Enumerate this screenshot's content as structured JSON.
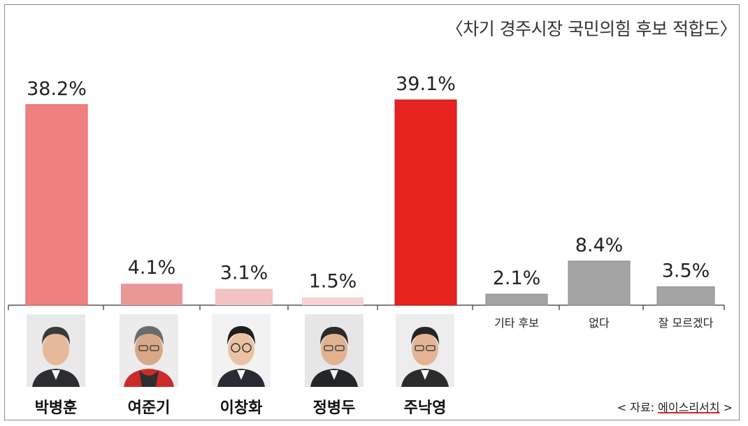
{
  "title": "〈차기 경주시장 국민의힘 후보 적합도〉",
  "source": {
    "prefix": "< 자료:",
    "name": "에이스리서치",
    "suffix": ">"
  },
  "chart_data": {
    "type": "bar",
    "title": "〈차기 경주시장 국민의힘 후보 적합도〉",
    "categories": [
      "박병훈",
      "여준기",
      "이창화",
      "정병두",
      "주낙영",
      "기타 후보",
      "없다",
      "잘 모르겠다"
    ],
    "values": [
      38.2,
      4.1,
      3.1,
      1.5,
      39.1,
      2.1,
      8.4,
      3.5
    ],
    "value_labels": [
      "38.2%",
      "4.1%",
      "3.1%",
      "1.5%",
      "39.1%",
      "2.1%",
      "8.4%",
      "3.5%"
    ],
    "colors": [
      "#f08080",
      "#e99898",
      "#f3c2c2",
      "#f6d2d2",
      "#e6231f",
      "#a4a4a4",
      "#a4a4a4",
      "#a4a4a4"
    ],
    "ylim": [
      0,
      40
    ],
    "grid": false,
    "legend": "none",
    "xlabel": "",
    "ylabel": ""
  }
}
